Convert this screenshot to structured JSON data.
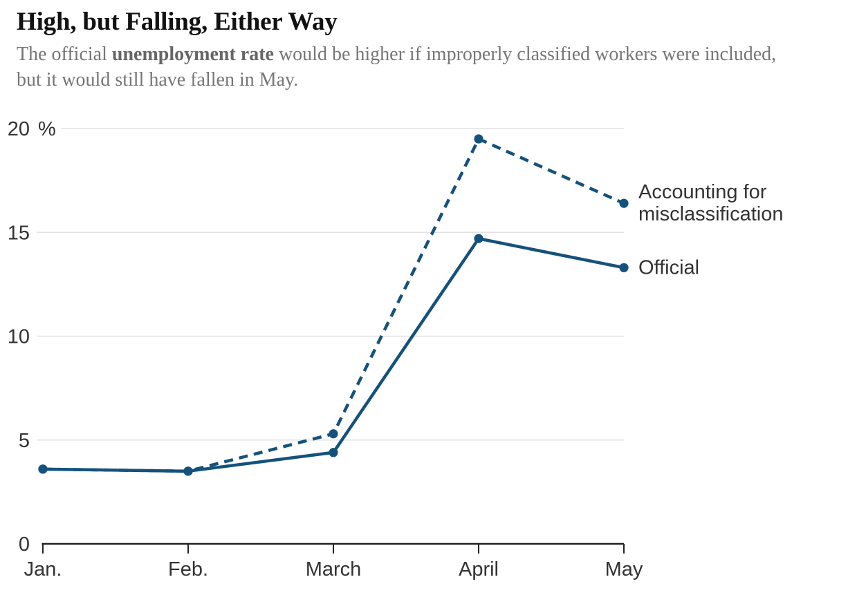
{
  "header": {
    "title": "High, but Falling, Either Way",
    "subtitle": {
      "pre": "The official ",
      "bold": "unemployment rate",
      "rest_line1": " would be higher if improperly classified workers were included,",
      "line2": "but it would still have fallen in May."
    }
  },
  "chart_data": {
    "type": "line",
    "title": "High, but Falling, Either Way",
    "categories": [
      "Jan.",
      "Feb.",
      "March",
      "April",
      "May"
    ],
    "series": [
      {
        "id": "misclassification",
        "name": "Accounting for misclassification",
        "label_lines": [
          "Accounting for",
          "misclassification"
        ],
        "style": "dashed",
        "values": [
          3.6,
          3.5,
          5.3,
          19.5,
          16.4
        ]
      },
      {
        "id": "official",
        "name": "Official",
        "label_lines": [
          "Official"
        ],
        "style": "solid",
        "values": [
          3.6,
          3.5,
          4.4,
          14.7,
          13.3
        ]
      }
    ],
    "unit": "%",
    "ylim": [
      0,
      20
    ],
    "y_ticks": [
      {
        "value": 20,
        "label": "20",
        "unit": "%"
      },
      {
        "value": 15,
        "label": "15"
      },
      {
        "value": 10,
        "label": "10"
      },
      {
        "value": 5,
        "label": "5"
      },
      {
        "value": 0,
        "label": "0"
      }
    ],
    "xlabel": "",
    "ylabel": "",
    "grid": "horizontal",
    "legend_position": "right-of-last-point",
    "colors": {
      "line": "#14527C",
      "grid": "#E2E2E2",
      "axis": "#222222",
      "text": "#333333"
    }
  }
}
